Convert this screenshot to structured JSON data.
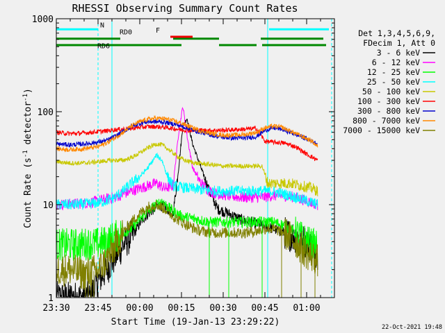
{
  "chart_data": {
    "type": "line",
    "title": "RHESSI Observing Summary Count Rates",
    "xlabel": "Start Time (19-Jan-13 23:29:22)",
    "ylabel": "Count Rate (s",
    "ylabel_sup1": "-1",
    "ylabel_mid": " detector",
    "ylabel_sup2": "-1",
    "ylabel_end": ")",
    "y_scale": "log",
    "ylim": [
      1,
      1000
    ],
    "xlim_minutes": [
      0,
      100
    ],
    "x_ticks": [
      {
        "label": "23:30",
        "minute": 0
      },
      {
        "label": "23:45",
        "minute": 15
      },
      {
        "label": "00:00",
        "minute": 30
      },
      {
        "label": "00:15",
        "minute": 45
      },
      {
        "label": "00:30",
        "minute": 60
      },
      {
        "label": "00:45",
        "minute": 75
      },
      {
        "label": "01:00",
        "minute": 90
      }
    ],
    "y_ticks": [
      {
        "label": "1",
        "value": 1
      },
      {
        "label": "10",
        "value": 10
      },
      {
        "label": "100",
        "value": 100
      },
      {
        "label": "1000",
        "value": 1000
      }
    ],
    "legend_header": [
      "Det 1,3,4,5,6,9,",
      "FDecim 1, Att 0"
    ],
    "legend_position": "top-right",
    "series": [
      {
        "name": "3 - 6 keV",
        "color": "#000000",
        "points": [
          [
            0,
            1
          ],
          [
            5,
            1
          ],
          [
            12,
            1
          ],
          [
            15,
            1.5
          ],
          [
            18,
            2
          ],
          [
            22,
            3
          ],
          [
            25,
            4
          ],
          [
            28,
            5
          ],
          [
            31,
            7
          ],
          [
            34,
            8.5
          ],
          [
            37,
            10
          ],
          [
            40,
            9
          ],
          [
            42,
            8
          ],
          [
            44,
            25
          ],
          [
            45.5,
            70
          ],
          [
            47,
            85
          ],
          [
            49,
            45
          ],
          [
            52,
            25
          ],
          [
            55,
            14
          ],
          [
            58,
            9
          ],
          [
            62,
            8
          ],
          [
            66,
            7
          ],
          [
            70,
            6.5
          ],
          [
            74,
            6
          ],
          [
            78,
            5.5
          ],
          [
            82,
            5
          ],
          [
            86,
            4.5
          ],
          [
            90,
            4
          ],
          [
            94,
            3
          ]
        ]
      },
      {
        "name": "6 - 12 keV",
        "color": "#ff00ff",
        "points": [
          [
            0,
            10
          ],
          [
            6,
            10.2
          ],
          [
            12,
            10.5
          ],
          [
            15,
            11
          ],
          [
            18,
            11.5
          ],
          [
            21,
            12
          ],
          [
            24,
            13
          ],
          [
            27,
            14
          ],
          [
            30,
            15
          ],
          [
            33,
            16
          ],
          [
            36,
            17
          ],
          [
            39,
            15
          ],
          [
            42,
            16
          ],
          [
            44,
            60
          ],
          [
            45.5,
            115
          ],
          [
            47,
            55
          ],
          [
            49,
            25
          ],
          [
            52,
            17
          ],
          [
            55,
            14
          ],
          [
            58,
            13
          ],
          [
            62,
            12.5
          ],
          [
            66,
            12
          ],
          [
            70,
            12
          ],
          [
            74,
            12
          ],
          [
            78,
            12.5
          ],
          [
            82,
            12.5
          ],
          [
            86,
            12
          ],
          [
            90,
            11
          ],
          [
            94,
            10
          ]
        ]
      },
      {
        "name": "12 - 25 keV",
        "color": "#00ff00",
        "points": [
          [
            0,
            3.7
          ],
          [
            6,
            3.7
          ],
          [
            12,
            3.8
          ],
          [
            15,
            3.8
          ],
          [
            18,
            4
          ],
          [
            21,
            4.5
          ],
          [
            24,
            5
          ],
          [
            27,
            5.5
          ],
          [
            30,
            7
          ],
          [
            33,
            8.5
          ],
          [
            36,
            10
          ],
          [
            38,
            11
          ],
          [
            40,
            9.5
          ],
          [
            42,
            8.5
          ],
          [
            45,
            7.5
          ],
          [
            50,
            7
          ],
          [
            55,
            6.5
          ],
          [
            60,
            6.5
          ],
          [
            65,
            6.5
          ],
          [
            70,
            6.5
          ],
          [
            75,
            6.5
          ],
          [
            78,
            6.5
          ],
          [
            82,
            6
          ],
          [
            86,
            5
          ],
          [
            90,
            4
          ],
          [
            94,
            3.5
          ]
        ]
      },
      {
        "name": "25 - 50 keV",
        "color": "#00ffff",
        "points": [
          [
            0,
            10
          ],
          [
            6,
            10
          ],
          [
            12,
            10.2
          ],
          [
            15,
            10.5
          ],
          [
            18,
            11
          ],
          [
            21,
            12
          ],
          [
            24,
            14
          ],
          [
            27,
            17
          ],
          [
            30,
            20
          ],
          [
            33,
            25
          ],
          [
            36,
            34
          ],
          [
            38,
            30
          ],
          [
            40,
            20
          ],
          [
            42,
            16
          ],
          [
            44,
            15.5
          ],
          [
            48,
            15
          ],
          [
            52,
            14.5
          ],
          [
            56,
            14
          ],
          [
            60,
            14
          ],
          [
            65,
            14
          ],
          [
            70,
            14
          ],
          [
            74,
            14
          ],
          [
            77,
            14
          ],
          [
            80,
            13.5
          ],
          [
            84,
            12.5
          ],
          [
            88,
            11.5
          ],
          [
            92,
            10.5
          ],
          [
            94,
            10
          ]
        ]
      },
      {
        "name": "50 - 100 keV",
        "color": "#c8c800",
        "points": [
          [
            0,
            29
          ],
          [
            5,
            28
          ],
          [
            10,
            28
          ],
          [
            15,
            29
          ],
          [
            20,
            30
          ],
          [
            24,
            30
          ],
          [
            27,
            32
          ],
          [
            30,
            36
          ],
          [
            33,
            41
          ],
          [
            36,
            45
          ],
          [
            38,
            44
          ],
          [
            40,
            40
          ],
          [
            43,
            34
          ],
          [
            46,
            30
          ],
          [
            50,
            28
          ],
          [
            55,
            27
          ],
          [
            60,
            26
          ],
          [
            65,
            26
          ],
          [
            70,
            26
          ],
          [
            74,
            26
          ],
          [
            76,
            17
          ],
          [
            80,
            17
          ],
          [
            84,
            17
          ],
          [
            88,
            16
          ],
          [
            92,
            15
          ],
          [
            94,
            14
          ]
        ]
      },
      {
        "name": "100 - 300 keV",
        "color": "#ff0000",
        "points": [
          [
            0,
            60
          ],
          [
            5,
            58
          ],
          [
            10,
            59
          ],
          [
            15,
            61
          ],
          [
            18,
            62
          ],
          [
            21,
            64
          ],
          [
            24,
            65
          ],
          [
            27,
            66
          ],
          [
            30,
            68
          ],
          [
            33,
            69
          ],
          [
            36,
            69
          ],
          [
            39,
            68
          ],
          [
            42,
            66
          ],
          [
            45,
            64
          ],
          [
            48,
            63
          ],
          [
            52,
            63
          ],
          [
            56,
            63
          ],
          [
            60,
            63
          ],
          [
            64,
            64
          ],
          [
            68,
            65
          ],
          [
            72,
            66
          ],
          [
            75,
            48
          ],
          [
            78,
            47
          ],
          [
            82,
            46
          ],
          [
            86,
            42
          ],
          [
            90,
            35
          ],
          [
            94,
            30
          ]
        ]
      },
      {
        "name": "300 - 800 keV",
        "color": "#0000cc",
        "points": [
          [
            0,
            45
          ],
          [
            5,
            44
          ],
          [
            10,
            45
          ],
          [
            15,
            47
          ],
          [
            18,
            49
          ],
          [
            21,
            54
          ],
          [
            24,
            61
          ],
          [
            27,
            69
          ],
          [
            30,
            75
          ],
          [
            33,
            78
          ],
          [
            36,
            78
          ],
          [
            39,
            77
          ],
          [
            42,
            74
          ],
          [
            45,
            70
          ],
          [
            48,
            65
          ],
          [
            52,
            60
          ],
          [
            56,
            56
          ],
          [
            60,
            53
          ],
          [
            64,
            52
          ],
          [
            68,
            52
          ],
          [
            72,
            54
          ],
          [
            75,
            63
          ],
          [
            78,
            67
          ],
          [
            81,
            65
          ],
          [
            84,
            60
          ],
          [
            88,
            54
          ],
          [
            92,
            48
          ],
          [
            94,
            45
          ]
        ]
      },
      {
        "name": "800 - 7000 keV",
        "color": "#ff8800",
        "points": [
          [
            0,
            40
          ],
          [
            5,
            39
          ],
          [
            10,
            40
          ],
          [
            15,
            42
          ],
          [
            18,
            46
          ],
          [
            21,
            52
          ],
          [
            24,
            60
          ],
          [
            27,
            70
          ],
          [
            30,
            78
          ],
          [
            33,
            83
          ],
          [
            36,
            85
          ],
          [
            39,
            84
          ],
          [
            42,
            80
          ],
          [
            45,
            75
          ],
          [
            48,
            69
          ],
          [
            52,
            62
          ],
          [
            56,
            58
          ],
          [
            60,
            56
          ],
          [
            64,
            56
          ],
          [
            68,
            57
          ],
          [
            72,
            60
          ],
          [
            75,
            67
          ],
          [
            78,
            70
          ],
          [
            81,
            68
          ],
          [
            84,
            62
          ],
          [
            88,
            55
          ],
          [
            92,
            48
          ],
          [
            94,
            42
          ]
        ]
      },
      {
        "name": "7000 - 15000 keV",
        "color": "#808000",
        "points": [
          [
            0,
            2
          ],
          [
            5,
            2
          ],
          [
            10,
            1.8
          ],
          [
            15,
            2
          ],
          [
            18,
            2.5
          ],
          [
            21,
            3.5
          ],
          [
            24,
            5
          ],
          [
            27,
            6.5
          ],
          [
            30,
            8
          ],
          [
            33,
            9.5
          ],
          [
            36,
            10
          ],
          [
            39,
            9
          ],
          [
            42,
            7.5
          ],
          [
            45,
            6.5
          ],
          [
            48,
            5.8
          ],
          [
            52,
            5.2
          ],
          [
            56,
            5
          ],
          [
            60,
            5
          ],
          [
            64,
            5
          ],
          [
            68,
            5
          ],
          [
            72,
            5.2
          ],
          [
            75,
            5.5
          ],
          [
            78,
            5.5
          ],
          [
            82,
            5
          ],
          [
            86,
            4
          ],
          [
            90,
            3
          ],
          [
            94,
            2.5
          ]
        ]
      }
    ],
    "spikes": [
      {
        "series": "7000 - 15000 keV",
        "minutes": [
          10.5,
          11.5,
          12.5,
          13.5,
          81,
          88,
          93
        ]
      },
      {
        "series": "12 - 25 keV",
        "minutes": [
          55,
          62,
          74
        ]
      }
    ],
    "steps": [
      {
        "name": "N",
        "label": "N",
        "color": "#00ffff",
        "value": 770,
        "segments": [
          [
            0,
            15
          ],
          [
            76.5,
            98
          ]
        ]
      },
      {
        "name": "RD0",
        "label": "RD0",
        "color": "#008800",
        "value": 610,
        "segments": [
          [
            0,
            23
          ],
          [
            42,
            58.5
          ],
          [
            73.5,
            96
          ]
        ]
      },
      {
        "name": "RD6",
        "label": "RD6",
        "color": "#008800",
        "value": 520,
        "segments": [
          [
            0,
            23
          ],
          [
            23,
            45
          ],
          [
            58.5,
            72
          ],
          [
            74,
            97
          ]
        ]
      },
      {
        "name": "F",
        "label": "F",
        "color": "#ee0000",
        "value": 640,
        "segments": [
          [
            41,
            49
          ]
        ]
      }
    ],
    "step_labels": [
      {
        "text": "N",
        "color": "#00ffff",
        "minute": 16.5,
        "value": 810
      },
      {
        "text": "RD0",
        "color": "#008800",
        "minute": 25,
        "value": 680
      },
      {
        "text": "RD6",
        "color": "#008800",
        "minute": 17,
        "value": 480
      },
      {
        "text": "F",
        "color": "#ee0000",
        "minute": 36.5,
        "value": 710
      }
    ],
    "vlines": [
      {
        "minute": 15,
        "color": "#00ffff",
        "dashed": true
      },
      {
        "minute": 76,
        "color": "#00ffff",
        "dashed": false
      },
      {
        "minute": 99,
        "color": "#00ffff",
        "dashed": true
      },
      {
        "minute": 20,
        "color": "#00ffff",
        "dashed": false
      }
    ]
  },
  "footer_timestamp": "22-Oct-2021 19:48"
}
